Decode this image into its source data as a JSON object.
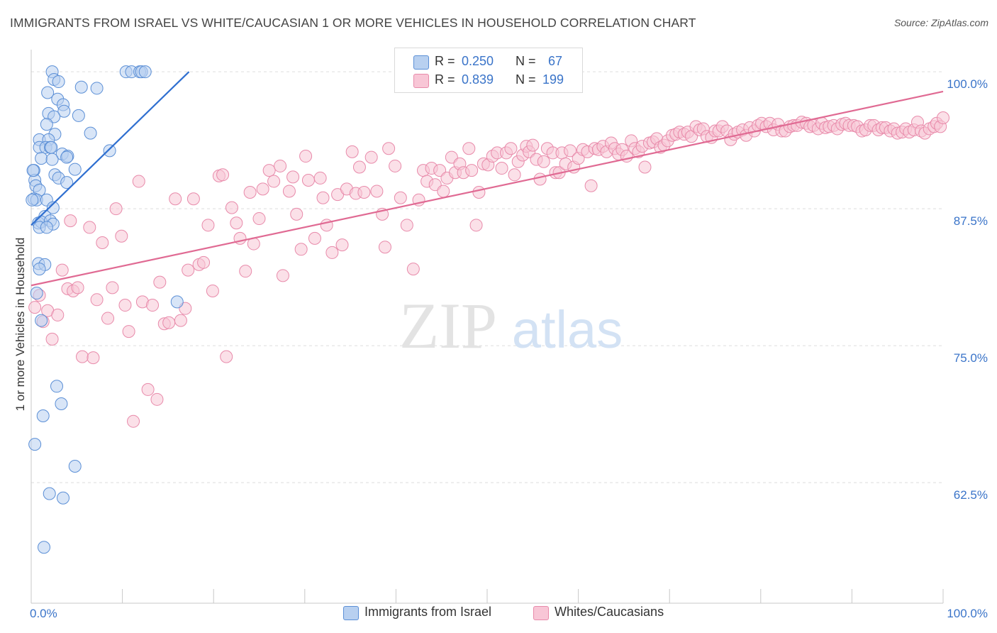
{
  "title": "IMMIGRANTS FROM ISRAEL VS WHITE/CAUCASIAN 1 OR MORE VEHICLES IN HOUSEHOLD CORRELATION CHART",
  "source": "Source: ZipAtlas.com",
  "watermark": {
    "zip": "ZIP",
    "atlas": "atlas"
  },
  "legend": {
    "rows": [
      {
        "r_label": "R =",
        "r_value": "0.250",
        "n_label": "N =",
        "n_value": "67"
      },
      {
        "r_label": "R =",
        "r_value": "0.839",
        "n_label": "N =",
        "n_value": "199"
      }
    ]
  },
  "bottom_legend": {
    "series_a": "Immigrants from Israel",
    "series_b": "Whites/Caucasians"
  },
  "colors": {
    "blue_fill": "#b8d0f0",
    "blue_stroke": "#5b8fd6",
    "blue_line": "#2f6fd0",
    "pink_fill": "#f8c6d6",
    "pink_stroke": "#e88aaa",
    "pink_line": "#e06a93",
    "axis_text": "#3a74c9",
    "grid": "#dddddd"
  },
  "chart_data": {
    "type": "scatter",
    "title": "IMMIGRANTS FROM ISRAEL VS WHITE/CAUCASIAN 1 OR MORE VEHICLES IN HOUSEHOLD CORRELATION CHART",
    "xlabel": "",
    "ylabel": "1 or more Vehicles in Household",
    "x_tick_labels": [
      "0.0%",
      "100.0%"
    ],
    "y_tick_labels": [
      "100.0%",
      "87.5%",
      "75.0%",
      "62.5%"
    ],
    "xlim": [
      0,
      100
    ],
    "ylim": [
      51.5,
      101.5
    ],
    "grid": true,
    "legend_position": "top-center",
    "series": [
      {
        "name": "Immigrants from Israel",
        "R": 0.25,
        "N": 67,
        "trend": {
          "x": [
            0,
            17.3
          ],
          "y": [
            86.0,
            100.0
          ]
        },
        "points": [
          [
            2.3,
            100.0
          ],
          [
            2.5,
            99.3
          ],
          [
            3.0,
            99.1
          ],
          [
            10.4,
            100.0
          ],
          [
            11.0,
            100.0
          ],
          [
            11.9,
            100.0
          ],
          [
            12.1,
            100.0
          ],
          [
            12.5,
            100.0
          ],
          [
            5.5,
            98.6
          ],
          [
            7.2,
            98.5
          ],
          [
            1.8,
            98.1
          ],
          [
            2.9,
            97.5
          ],
          [
            3.5,
            97.0
          ],
          [
            3.6,
            96.4
          ],
          [
            1.9,
            96.2
          ],
          [
            2.5,
            95.9
          ],
          [
            5.2,
            96.0
          ],
          [
            1.7,
            95.2
          ],
          [
            6.5,
            94.4
          ],
          [
            2.6,
            94.3
          ],
          [
            0.9,
            93.8
          ],
          [
            1.9,
            93.8
          ],
          [
            0.9,
            93.1
          ],
          [
            1.6,
            93.1
          ],
          [
            2.1,
            93.1
          ],
          [
            2.2,
            93.1
          ],
          [
            8.6,
            92.8
          ],
          [
            3.4,
            92.5
          ],
          [
            4.0,
            92.3
          ],
          [
            1.1,
            92.1
          ],
          [
            2.3,
            92.0
          ],
          [
            3.9,
            92.2
          ],
          [
            0.3,
            91.0
          ],
          [
            4.8,
            91.1
          ],
          [
            2.6,
            90.6
          ],
          [
            3.0,
            90.3
          ],
          [
            0.4,
            90.1
          ],
          [
            3.9,
            89.9
          ],
          [
            0.5,
            89.6
          ],
          [
            0.9,
            89.2
          ],
          [
            0.3,
            88.4
          ],
          [
            0.6,
            88.3
          ],
          [
            1.7,
            88.3
          ],
          [
            2.4,
            87.6
          ],
          [
            1.5,
            86.8
          ],
          [
            0.8,
            86.2
          ],
          [
            1.1,
            86.3
          ],
          [
            2.1,
            86.4
          ],
          [
            2.4,
            86.1
          ],
          [
            0.9,
            85.8
          ],
          [
            1.7,
            85.8
          ],
          [
            0.8,
            82.5
          ],
          [
            1.5,
            82.4
          ],
          [
            0.9,
            82.0
          ],
          [
            0.6,
            79.8
          ],
          [
            16.0,
            79.0
          ],
          [
            1.1,
            77.3
          ],
          [
            2.8,
            71.3
          ],
          [
            3.3,
            69.7
          ],
          [
            1.3,
            68.6
          ],
          [
            0.4,
            66.0
          ],
          [
            4.8,
            64.0
          ],
          [
            2.0,
            61.5
          ],
          [
            3.5,
            61.1
          ],
          [
            1.4,
            56.6
          ],
          [
            0.2,
            91.0
          ],
          [
            0.1,
            88.3
          ]
        ]
      },
      {
        "name": "Whites/Caucasians",
        "R": 0.839,
        "N": 199,
        "trend": {
          "x": [
            0,
            100
          ],
          "y": [
            80.5,
            98.2
          ]
        },
        "points": [
          [
            0.4,
            78.5
          ],
          [
            0.9,
            79.6
          ],
          [
            1.3,
            77.2
          ],
          [
            1.8,
            78.2
          ],
          [
            2.3,
            75.6
          ],
          [
            2.9,
            77.8
          ],
          [
            3.4,
            81.9
          ],
          [
            4.0,
            80.2
          ],
          [
            4.3,
            86.4
          ],
          [
            4.6,
            80.0
          ],
          [
            5.1,
            80.3
          ],
          [
            5.6,
            74.0
          ],
          [
            6.4,
            85.8
          ],
          [
            6.8,
            73.9
          ],
          [
            7.2,
            79.2
          ],
          [
            7.8,
            84.4
          ],
          [
            8.4,
            77.5
          ],
          [
            8.9,
            80.3
          ],
          [
            9.3,
            87.5
          ],
          [
            9.9,
            85.0
          ],
          [
            10.3,
            78.7
          ],
          [
            10.7,
            76.3
          ],
          [
            11.2,
            68.1
          ],
          [
            11.8,
            90.0
          ],
          [
            12.2,
            79.0
          ],
          [
            12.8,
            71.0
          ],
          [
            13.3,
            78.7
          ],
          [
            13.8,
            70.1
          ],
          [
            14.1,
            80.8
          ],
          [
            14.6,
            77.0
          ],
          [
            15.1,
            77.1
          ],
          [
            15.8,
            88.4
          ],
          [
            16.4,
            77.3
          ],
          [
            16.9,
            78.4
          ],
          [
            17.2,
            81.9
          ],
          [
            17.8,
            88.4
          ],
          [
            18.4,
            82.4
          ],
          [
            18.9,
            82.6
          ],
          [
            19.4,
            86.0
          ],
          [
            19.9,
            80.0
          ],
          [
            20.6,
            90.5
          ],
          [
            21.0,
            90.6
          ],
          [
            21.4,
            74.0
          ],
          [
            22.0,
            87.6
          ],
          [
            22.5,
            86.2
          ],
          [
            22.9,
            84.8
          ],
          [
            23.5,
            81.8
          ],
          [
            24.0,
            89.0
          ],
          [
            24.4,
            84.3
          ],
          [
            25.0,
            86.6
          ],
          [
            25.4,
            89.3
          ],
          [
            26.1,
            91.0
          ],
          [
            26.6,
            90.0
          ],
          [
            27.3,
            91.4
          ],
          [
            27.6,
            81.4
          ],
          [
            28.3,
            89.1
          ],
          [
            28.7,
            90.4
          ],
          [
            29.1,
            87.0
          ],
          [
            29.6,
            83.8
          ],
          [
            30.1,
            92.3
          ],
          [
            30.4,
            90.1
          ],
          [
            31.1,
            84.8
          ],
          [
            31.7,
            90.3
          ],
          [
            32.0,
            88.5
          ],
          [
            32.4,
            86.0
          ],
          [
            33.0,
            83.5
          ],
          [
            33.6,
            88.8
          ],
          [
            34.1,
            84.2
          ],
          [
            34.6,
            89.3
          ],
          [
            35.2,
            92.7
          ],
          [
            35.6,
            88.9
          ],
          [
            36.0,
            91.3
          ],
          [
            36.5,
            89.0
          ],
          [
            37.3,
            92.2
          ],
          [
            37.9,
            89.1
          ],
          [
            38.5,
            87.0
          ],
          [
            38.8,
            84.0
          ],
          [
            39.2,
            93.0
          ],
          [
            39.9,
            91.4
          ],
          [
            40.5,
            88.5
          ],
          [
            41.2,
            86.0
          ],
          [
            41.9,
            82.0
          ],
          [
            42.5,
            88.3
          ],
          [
            43.0,
            91.0
          ],
          [
            43.4,
            90.0
          ],
          [
            43.9,
            91.2
          ],
          [
            44.3,
            89.7
          ],
          [
            44.8,
            91.0
          ],
          [
            45.2,
            89.1
          ],
          [
            45.6,
            90.3
          ],
          [
            46.1,
            92.2
          ],
          [
            46.5,
            90.8
          ],
          [
            47.0,
            91.6
          ],
          [
            47.4,
            90.8
          ],
          [
            48.0,
            93.0
          ],
          [
            48.3,
            91.0
          ],
          [
            48.8,
            86.0
          ],
          [
            49.1,
            89.0
          ],
          [
            49.6,
            91.6
          ],
          [
            50.1,
            91.5
          ],
          [
            50.6,
            92.3
          ],
          [
            51.1,
            92.6
          ],
          [
            51.6,
            91.2
          ],
          [
            52.1,
            92.6
          ],
          [
            52.6,
            93.0
          ],
          [
            53.0,
            90.6
          ],
          [
            53.4,
            91.8
          ],
          [
            53.9,
            92.4
          ],
          [
            54.3,
            93.2
          ],
          [
            54.6,
            92.7
          ],
          [
            55.0,
            93.3
          ],
          [
            55.4,
            92.0
          ],
          [
            55.8,
            90.2
          ],
          [
            56.2,
            91.8
          ],
          [
            56.6,
            93.0
          ],
          [
            57.2,
            92.6
          ],
          [
            57.5,
            90.8
          ],
          [
            57.9,
            90.8
          ],
          [
            58.2,
            92.6
          ],
          [
            58.6,
            91.6
          ],
          [
            59.1,
            92.8
          ],
          [
            59.5,
            91.3
          ],
          [
            60.0,
            92.1
          ],
          [
            60.5,
            92.9
          ],
          [
            61.0,
            92.7
          ],
          [
            61.4,
            89.6
          ],
          [
            61.8,
            93.0
          ],
          [
            62.2,
            92.9
          ],
          [
            62.7,
            93.2
          ],
          [
            63.1,
            92.7
          ],
          [
            63.6,
            93.5
          ],
          [
            64.0,
            93.0
          ],
          [
            64.4,
            92.5
          ],
          [
            64.8,
            92.9
          ],
          [
            65.3,
            92.3
          ],
          [
            65.8,
            93.7
          ],
          [
            66.2,
            93.0
          ],
          [
            66.6,
            92.7
          ],
          [
            67.0,
            93.2
          ],
          [
            67.3,
            91.3
          ],
          [
            67.8,
            93.5
          ],
          [
            68.2,
            93.6
          ],
          [
            68.6,
            93.9
          ],
          [
            69.0,
            93.1
          ],
          [
            69.4,
            93.3
          ],
          [
            69.8,
            93.7
          ],
          [
            70.3,
            94.2
          ],
          [
            70.7,
            94.3
          ],
          [
            71.1,
            94.5
          ],
          [
            71.6,
            94.3
          ],
          [
            72.0,
            94.5
          ],
          [
            72.4,
            94.1
          ],
          [
            72.9,
            95.0
          ],
          [
            73.3,
            94.7
          ],
          [
            73.7,
            94.8
          ],
          [
            74.1,
            94.1
          ],
          [
            74.6,
            94.0
          ],
          [
            75.0,
            94.6
          ],
          [
            75.4,
            94.6
          ],
          [
            75.8,
            95.0
          ],
          [
            76.3,
            94.6
          ],
          [
            76.7,
            93.8
          ],
          [
            77.1,
            94.3
          ],
          [
            77.5,
            94.5
          ],
          [
            78.0,
            94.7
          ],
          [
            78.4,
            94.2
          ],
          [
            78.8,
            94.9
          ],
          [
            79.3,
            94.6
          ],
          [
            79.7,
            95.1
          ],
          [
            80.1,
            95.3
          ],
          [
            80.6,
            95.0
          ],
          [
            81.0,
            95.3
          ],
          [
            81.4,
            94.7
          ],
          [
            81.9,
            95.2
          ],
          [
            82.3,
            94.6
          ],
          [
            82.7,
            94.6
          ],
          [
            83.2,
            95.0
          ],
          [
            83.6,
            95.1
          ],
          [
            84.0,
            95.1
          ],
          [
            84.5,
            95.4
          ],
          [
            85.0,
            95.3
          ],
          [
            85.4,
            95.0
          ],
          [
            85.8,
            95.1
          ],
          [
            86.3,
            94.8
          ],
          [
            86.7,
            95.3
          ],
          [
            87.1,
            94.9
          ],
          [
            87.5,
            95.0
          ],
          [
            88.0,
            95.1
          ],
          [
            88.4,
            94.8
          ],
          [
            88.9,
            95.2
          ],
          [
            89.3,
            95.3
          ],
          [
            89.7,
            95.1
          ],
          [
            90.2,
            95.1
          ],
          [
            90.6,
            95.0
          ],
          [
            91.1,
            94.6
          ],
          [
            91.5,
            94.7
          ],
          [
            92.0,
            95.1
          ],
          [
            92.4,
            95.1
          ],
          [
            92.9,
            94.7
          ],
          [
            93.3,
            94.9
          ],
          [
            93.7,
            94.9
          ],
          [
            94.2,
            94.6
          ],
          [
            94.6,
            94.8
          ],
          [
            95.0,
            94.4
          ],
          [
            95.5,
            94.5
          ],
          [
            95.9,
            94.8
          ],
          [
            96.3,
            94.5
          ],
          [
            96.8,
            94.7
          ],
          [
            97.2,
            95.4
          ],
          [
            97.6,
            94.6
          ],
          [
            98.0,
            94.4
          ],
          [
            98.5,
            94.8
          ],
          [
            99.0,
            95.0
          ],
          [
            99.3,
            95.3
          ],
          [
            99.7,
            95.0
          ],
          [
            100.0,
            95.8
          ]
        ]
      }
    ]
  }
}
